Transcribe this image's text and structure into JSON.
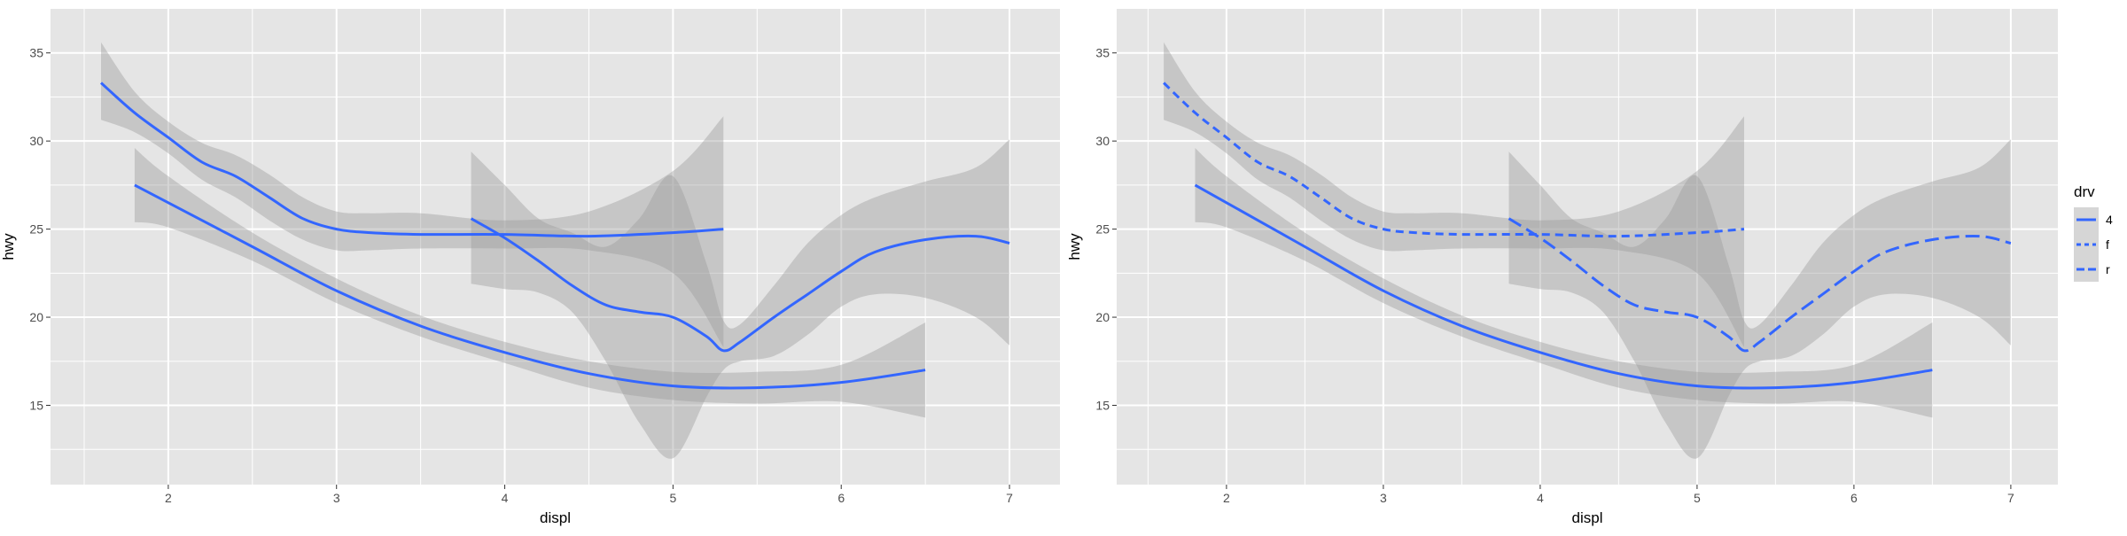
{
  "chart_data": [
    {
      "type": "line",
      "panel": "left",
      "xlabel": "displ",
      "ylabel": "hwy",
      "xlim": [
        1.3,
        7.3
      ],
      "ylim": [
        10.5,
        37.5
      ],
      "x_ticks": [
        2,
        3,
        4,
        5,
        6,
        7
      ],
      "y_ticks": [
        15,
        20,
        25,
        30,
        35
      ],
      "grid": true,
      "legend": "none",
      "series": [
        {
          "x": [
            1.6,
            1.8,
            2.0,
            2.2,
            2.4,
            2.6,
            2.8,
            3.0,
            3.2,
            3.5,
            4.0,
            4.5,
            5.0,
            5.3
          ],
          "y": [
            33.3,
            31.6,
            30.2,
            28.8,
            28.0,
            26.8,
            25.6,
            25.0,
            24.8,
            24.7,
            24.7,
            24.6,
            24.8,
            25.0
          ],
          "lower": [
            31.2,
            30.5,
            29.3,
            27.8,
            26.8,
            25.5,
            24.4,
            23.8,
            23.8,
            23.9,
            23.9,
            23.8,
            22.5,
            18.3
          ],
          "upper": [
            35.6,
            32.8,
            31.1,
            29.9,
            29.2,
            28.1,
            26.8,
            26.0,
            25.9,
            25.9,
            25.5,
            26.0,
            28.3,
            31.4
          ]
        },
        {
          "x": [
            1.8,
            2.0,
            2.5,
            3.0,
            3.5,
            4.0,
            4.5,
            5.0,
            5.5,
            6.0,
            6.5
          ],
          "y": [
            27.5,
            26.5,
            24.0,
            21.5,
            19.5,
            18.0,
            16.8,
            16.1,
            16.0,
            16.3,
            17.0
          ],
          "lower": [
            25.4,
            25.1,
            23.2,
            20.8,
            18.9,
            17.4,
            16.0,
            15.3,
            15.1,
            15.2,
            14.3
          ],
          "upper": [
            29.6,
            28.0,
            24.8,
            22.2,
            20.1,
            18.6,
            17.5,
            16.9,
            16.9,
            17.3,
            19.7
          ]
        },
        {
          "x": [
            3.8,
            4.0,
            4.2,
            4.4,
            4.6,
            4.8,
            5.0,
            5.2,
            5.3,
            5.4,
            5.6,
            5.8,
            6.0,
            6.2,
            6.5,
            6.8,
            7.0
          ],
          "y": [
            25.6,
            24.5,
            23.2,
            21.8,
            20.7,
            20.3,
            20.0,
            18.9,
            18.1,
            18.6,
            20.0,
            21.3,
            22.6,
            23.7,
            24.4,
            24.6,
            24.2
          ],
          "lower": [
            21.9,
            21.6,
            21.4,
            20.3,
            17.5,
            14.0,
            12.0,
            15.5,
            17.0,
            17.5,
            17.8,
            19.0,
            20.6,
            21.3,
            21.1,
            20.0,
            18.4
          ],
          "upper": [
            29.4,
            27.5,
            25.6,
            24.8,
            24.0,
            25.6,
            28.0,
            23.0,
            19.8,
            19.6,
            21.8,
            24.2,
            25.8,
            26.8,
            27.7,
            28.5,
            30.1
          ]
        }
      ]
    },
    {
      "type": "line",
      "panel": "right",
      "xlabel": "displ",
      "ylabel": "hwy",
      "xlim": [
        1.3,
        7.3
      ],
      "ylim": [
        10.5,
        37.5
      ],
      "x_ticks": [
        2,
        3,
        4,
        5,
        6,
        7
      ],
      "y_ticks": [
        15,
        20,
        25,
        30,
        35
      ],
      "grid": true,
      "legend": "right",
      "legend_title": "drv",
      "series": [
        {
          "name": "f",
          "linetype": "dashed",
          "x": [
            1.6,
            1.8,
            2.0,
            2.2,
            2.4,
            2.6,
            2.8,
            3.0,
            3.2,
            3.5,
            4.0,
            4.5,
            5.0,
            5.3
          ],
          "y": [
            33.3,
            31.6,
            30.2,
            28.8,
            28.0,
            26.8,
            25.6,
            25.0,
            24.8,
            24.7,
            24.7,
            24.6,
            24.8,
            25.0
          ],
          "lower": [
            31.2,
            30.5,
            29.3,
            27.8,
            26.8,
            25.5,
            24.4,
            23.8,
            23.8,
            23.9,
            23.9,
            23.8,
            22.5,
            18.3
          ],
          "upper": [
            35.6,
            32.8,
            31.1,
            29.9,
            29.2,
            28.1,
            26.8,
            26.0,
            25.9,
            25.9,
            25.5,
            26.0,
            28.3,
            31.4
          ]
        },
        {
          "name": "4",
          "linetype": "solid",
          "x": [
            1.8,
            2.0,
            2.5,
            3.0,
            3.5,
            4.0,
            4.5,
            5.0,
            5.5,
            6.0,
            6.5
          ],
          "y": [
            27.5,
            26.5,
            24.0,
            21.5,
            19.5,
            18.0,
            16.8,
            16.1,
            16.0,
            16.3,
            17.0
          ],
          "lower": [
            25.4,
            25.1,
            23.2,
            20.8,
            18.9,
            17.4,
            16.0,
            15.3,
            15.1,
            15.2,
            14.3
          ],
          "upper": [
            29.6,
            28.0,
            24.8,
            22.2,
            20.1,
            18.6,
            17.5,
            16.9,
            16.9,
            17.3,
            19.7
          ]
        },
        {
          "name": "r",
          "linetype": "longdash",
          "x": [
            3.8,
            4.0,
            4.2,
            4.4,
            4.6,
            4.8,
            5.0,
            5.2,
            5.3,
            5.4,
            5.6,
            5.8,
            6.0,
            6.2,
            6.5,
            6.8,
            7.0
          ],
          "y": [
            25.6,
            24.5,
            23.2,
            21.8,
            20.7,
            20.3,
            20.0,
            18.9,
            18.1,
            18.6,
            20.0,
            21.3,
            22.6,
            23.7,
            24.4,
            24.6,
            24.2
          ],
          "lower": [
            21.9,
            21.6,
            21.4,
            20.3,
            17.5,
            14.0,
            12.0,
            15.5,
            17.0,
            17.5,
            17.8,
            19.0,
            20.6,
            21.3,
            21.1,
            20.0,
            18.4
          ],
          "upper": [
            29.4,
            27.5,
            25.6,
            24.8,
            24.0,
            25.6,
            28.0,
            23.0,
            19.8,
            19.6,
            21.8,
            24.2,
            25.8,
            26.8,
            27.7,
            28.5,
            30.1
          ]
        }
      ],
      "legend_items": [
        {
          "label": "4",
          "linetype": "solid"
        },
        {
          "label": "f",
          "linetype": "dashed"
        },
        {
          "label": "r",
          "linetype": "longdash"
        }
      ]
    }
  ],
  "colors": {
    "line": "#3366FF",
    "ribbon": "#999999",
    "panel_bg": "#E5E5E5",
    "grid": "#FFFFFF",
    "tick_text": "#4D4D4D"
  }
}
